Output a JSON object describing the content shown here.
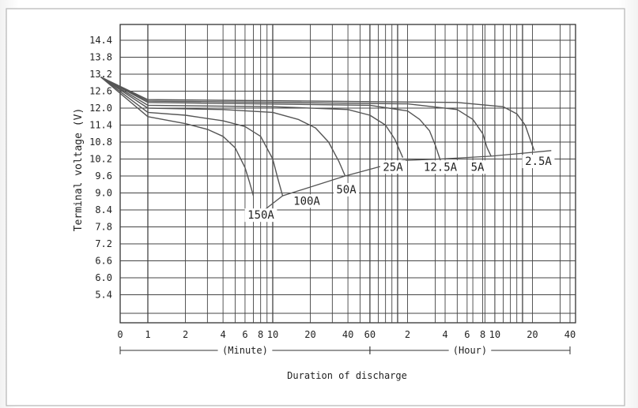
{
  "chart_data": {
    "type": "line",
    "title": "",
    "xlabel": "Duration of discharge",
    "ylabel": "Terminal voltage (V)",
    "x_scale": "log",
    "x_unit": "minutes",
    "ylim": [
      5.0,
      14.6
    ],
    "grid": true,
    "y_ticks": [
      "14.4",
      "13.8",
      "13.2",
      "12.6",
      "12.0",
      "11.4",
      "10.8",
      "10.2",
      "9.6",
      "9.0",
      "8.4",
      "7.8",
      "7.2",
      "6.6",
      "6.0",
      "5.4"
    ],
    "x_tick_labels": [
      "0",
      "1",
      "2",
      "4",
      "6",
      "8",
      "10",
      "20",
      "40",
      "60",
      "2",
      "4",
      "6",
      "8",
      "10",
      "20",
      "40"
    ],
    "x_tick_minutes": [
      0,
      1,
      2,
      4,
      6,
      8,
      10,
      20,
      40,
      60,
      120,
      240,
      360,
      480,
      600,
      1200,
      2400
    ],
    "x_groups": [
      {
        "label": "(Minute)",
        "from_minutes": 0.42,
        "to_minutes": 60
      },
      {
        "label": "(Hour)",
        "from_minutes": 60,
        "to_minutes": 2400
      }
    ],
    "series": [
      {
        "name": "150A",
        "x": [
          0.42,
          1,
          2,
          3,
          4,
          5,
          6,
          6.5,
          7
        ],
        "y": [
          13.1,
          11.7,
          11.45,
          11.25,
          11.0,
          10.6,
          9.9,
          9.4,
          8.9
        ]
      },
      {
        "name": "100A",
        "x": [
          0.42,
          1,
          2,
          4,
          6,
          8,
          10,
          11,
          12
        ],
        "y": [
          13.1,
          11.85,
          11.75,
          11.55,
          11.35,
          11.0,
          10.2,
          9.5,
          8.9
        ]
      },
      {
        "name": "50A",
        "x": [
          0.42,
          1,
          4,
          10,
          16,
          22,
          28,
          34,
          38
        ],
        "y": [
          13.1,
          12.0,
          11.95,
          11.85,
          11.6,
          11.3,
          10.8,
          10.1,
          9.6
        ]
      },
      {
        "name": "25A",
        "x": [
          0.42,
          1,
          10,
          40,
          60,
          80,
          95,
          110
        ],
        "y": [
          13.1,
          12.1,
          12.05,
          11.95,
          11.75,
          11.4,
          10.9,
          10.25
        ]
      },
      {
        "name": "12.5A",
        "x": [
          0.42,
          1,
          60,
          120,
          150,
          180,
          200,
          220
        ],
        "y": [
          13.1,
          12.2,
          12.1,
          11.9,
          11.6,
          11.2,
          10.7,
          10.15
        ]
      },
      {
        "name": "5A",
        "x": [
          0.42,
          1,
          120,
          300,
          400,
          480,
          520,
          560
        ],
        "y": [
          13.1,
          12.25,
          12.15,
          11.95,
          11.6,
          11.1,
          10.6,
          10.3
        ]
      },
      {
        "name": "2.5A",
        "x": [
          0.42,
          1,
          300,
          700,
          900,
          1050,
          1150,
          1240
        ],
        "y": [
          13.1,
          12.3,
          12.2,
          12.05,
          11.8,
          11.4,
          10.9,
          10.5
        ]
      }
    ],
    "end_voltage_line": {
      "x": [
        7,
        12,
        38,
        110,
        220,
        560,
        1700
      ],
      "y": [
        8.1,
        8.9,
        9.6,
        10.15,
        10.2,
        10.3,
        10.5
      ]
    }
  }
}
